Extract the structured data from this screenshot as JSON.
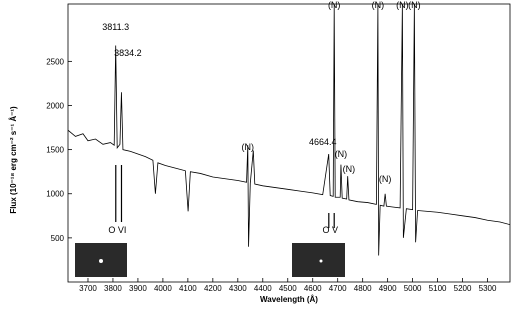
{
  "chart_data": {
    "type": "line",
    "x_label": "Wavelength (Å)",
    "y_label": "Flux (10⁻¹⁸ erg cm⁻² s⁻¹ Å⁻¹)",
    "xlim": [
      3620,
      5390
    ],
    "ylim": [
      0,
      3150
    ],
    "xticks": [
      3700,
      3800,
      3900,
      4000,
      4100,
      4200,
      4300,
      4400,
      4500,
      4600,
      4700,
      4800,
      4900,
      5000,
      5100,
      5200,
      5300
    ],
    "yticks": [
      500,
      1000,
      1500,
      2000,
      2500
    ],
    "series": [
      {
        "color": "#000000",
        "x": [
          3620,
          3650,
          3680,
          3700,
          3730,
          3760,
          3790,
          3805,
          3811,
          3817,
          3828,
          3834,
          3840,
          3870,
          3900,
          3930,
          3960,
          3970,
          3980,
          4010,
          4050,
          4090,
          4101,
          4110,
          4150,
          4200,
          4250,
          4300,
          4335,
          4340,
          4343,
          4350,
          4362,
          4368,
          4400,
          4450,
          4500,
          4550,
          4600,
          4640,
          4664,
          4670,
          4682,
          4686,
          4690,
          4710,
          4713,
          4718,
          4736,
          4740,
          4745,
          4780,
          4820,
          4855,
          4861,
          4864,
          4870,
          4885,
          4890,
          4895,
          4920,
          4950,
          4959,
          4963,
          4975,
          5000,
          5007,
          5012,
          5020,
          5060,
          5100,
          5150,
          5200,
          5250,
          5300,
          5350,
          5390
        ],
        "values": [
          1720,
          1650,
          1680,
          1600,
          1620,
          1560,
          1580,
          1550,
          2680,
          1520,
          1560,
          2150,
          1500,
          1480,
          1450,
          1420,
          1380,
          1000,
          1350,
          1320,
          1290,
          1260,
          800,
          1250,
          1230,
          1190,
          1170,
          1150,
          1130,
          1550,
          400,
          1120,
          1490,
          1110,
          1090,
          1070,
          1050,
          1030,
          1010,
          990,
          1450,
          980,
          970,
          3150,
          960,
          960,
          1330,
          950,
          940,
          1200,
          930,
          910,
          900,
          880,
          3150,
          300,
          870,
          860,
          1000,
          860,
          850,
          840,
          3150,
          500,
          830,
          820,
          3150,
          450,
          810,
          800,
          790,
          770,
          750,
          730,
          700,
          680,
          650
        ]
      }
    ],
    "annotations": [
      {
        "text": "3811.3",
        "x": 3811,
        "y": 2855
      },
      {
        "text": "3834.2",
        "x": 3860,
        "y": 2561
      },
      {
        "text": "(N)",
        "x": 4340,
        "y": 1496
      },
      {
        "text": "(N)",
        "x": 4686,
        "y": 3105
      },
      {
        "text": "4664.4",
        "x": 4640,
        "y": 1552
      },
      {
        "text": "(N)",
        "x": 4713,
        "y": 1416
      },
      {
        "text": "(N)",
        "x": 4745,
        "y": 1246
      },
      {
        "text": "(N)",
        "x": 4861,
        "y": 3105
      },
      {
        "text": "(N)",
        "x": 4890,
        "y": 1133
      },
      {
        "text": "(N)",
        "x": 4959,
        "y": 3105
      },
      {
        "text": "(N)",
        "x": 5007,
        "y": 3105
      },
      {
        "text": "O VI",
        "x": 3818,
        "y": 555
      },
      {
        "text": "O V",
        "x": 4670,
        "y": 555
      }
    ],
    "marker_x": [
      3811.3,
      3834.2,
      4664.4,
      4686
    ]
  }
}
